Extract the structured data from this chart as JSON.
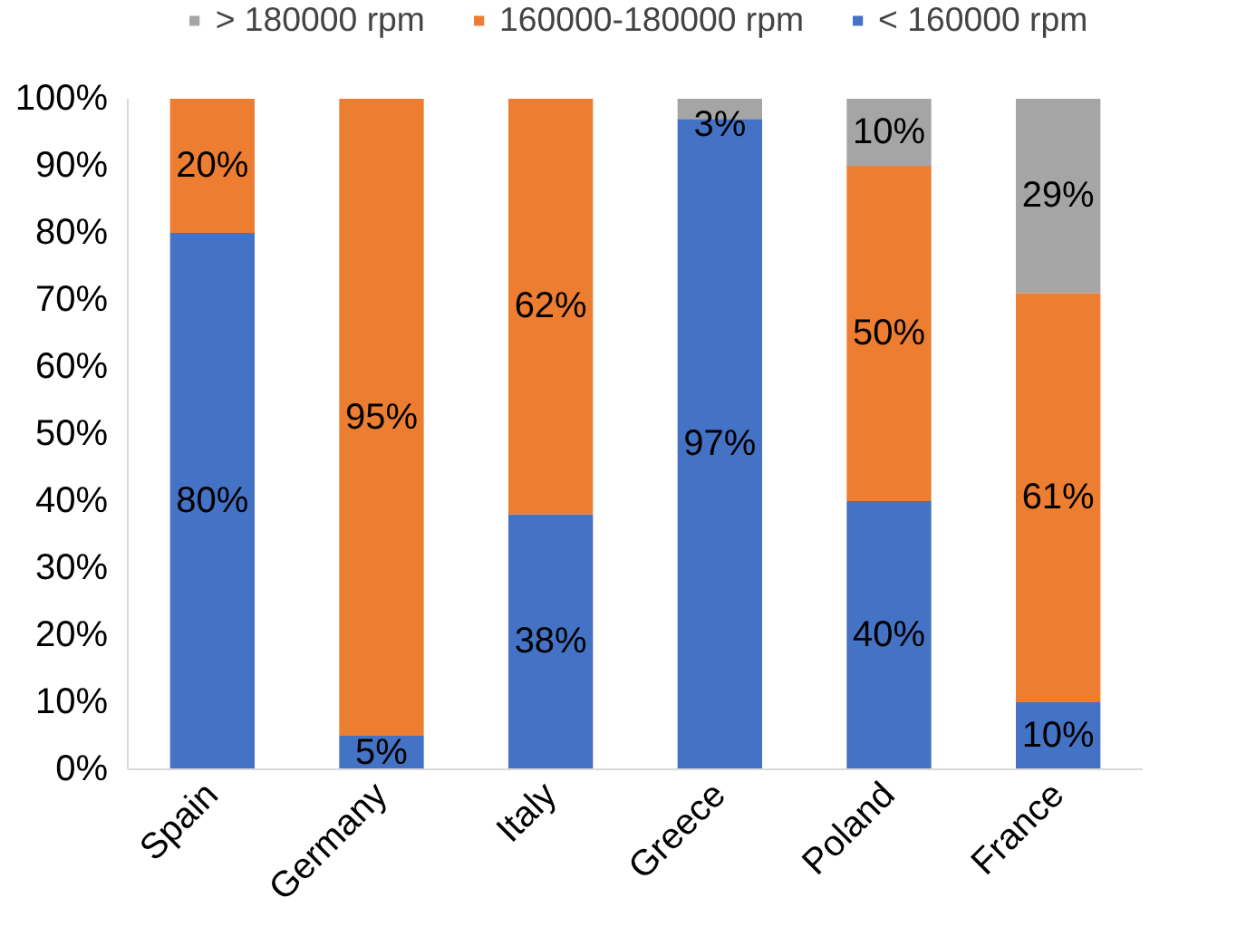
{
  "chart_data": {
    "type": "bar",
    "stacked": true,
    "categories": [
      "Spain",
      "Germany",
      "Italy",
      "Greece",
      "Poland",
      "France"
    ],
    "series": [
      {
        "name": "< 160000 rpm",
        "color": "#4472c4",
        "values": [
          80,
          5,
          38,
          97,
          40,
          10
        ],
        "value_labels": [
          "80%",
          "5%",
          "38%",
          "97%",
          "40%",
          "10%"
        ]
      },
      {
        "name": "160000-180000 rpm",
        "color": "#ed7d31",
        "values": [
          20,
          95,
          62,
          0,
          50,
          61
        ],
        "value_labels": [
          "20%",
          "95%",
          "62%",
          null,
          "50%",
          "61%"
        ]
      },
      {
        "name": "> 180000 rpm",
        "color": "#a5a5a5",
        "values": [
          0,
          0,
          0,
          3,
          10,
          29
        ],
        "value_labels": [
          null,
          null,
          null,
          "3%",
          "10%",
          "29%"
        ]
      }
    ],
    "ylim": [
      0,
      100
    ],
    "yticks": [
      {
        "value": 0,
        "label": "0%"
      },
      {
        "value": 10,
        "label": "10%"
      },
      {
        "value": 20,
        "label": "20%"
      },
      {
        "value": 30,
        "label": "30%"
      },
      {
        "value": 40,
        "label": "40%"
      },
      {
        "value": 50,
        "label": "50%"
      },
      {
        "value": 60,
        "label": "60%"
      },
      {
        "value": 70,
        "label": "70%"
      },
      {
        "value": 80,
        "label": "80%"
      },
      {
        "value": 90,
        "label": "90%"
      },
      {
        "value": 100,
        "label": "100%"
      }
    ],
    "grid": false,
    "legend": "top"
  }
}
